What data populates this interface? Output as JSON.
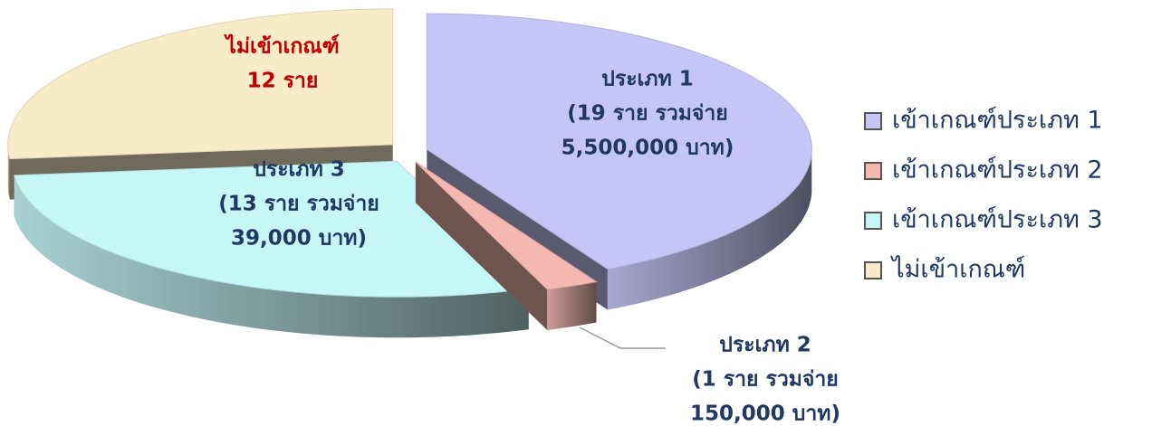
{
  "chart_data": {
    "type": "pie",
    "categories": [
      "เข้าเกณฑ์ประเภท 1",
      "เข้าเกณฑ์ประเภท 2",
      "เข้าเกณฑ์ประเภท 3",
      "ไม่เข้าเกณฑ์"
    ],
    "values": [
      19,
      1,
      13,
      12
    ],
    "value_labels": [
      [
        "ประเภท 1",
        "(19 ราย รวมจ่าย",
        "5,500,000 บาท)"
      ],
      [
        "ประเภท 2",
        "(1 ราย รวมจ่าย",
        "150,000 บาท)"
      ],
      [
        "ประเภท 3",
        "(13 ราย รวมจ่าย",
        "39,000 บาท)"
      ],
      [
        "ไม่เข้าเกณฑ์",
        "12 ราย"
      ]
    ],
    "colors": [
      "#c6c6f6",
      "#f4b8b0",
      "#c6f6f6",
      "#f8ecc8"
    ],
    "legend": "right"
  }
}
